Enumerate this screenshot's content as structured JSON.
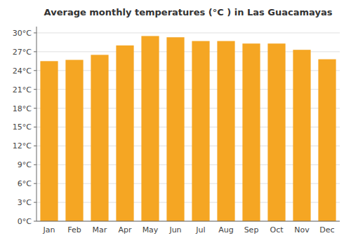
{
  "chart_data": {
    "type": "bar",
    "title": "Average monthly temperatures (°C ) in Las Guacamayas",
    "categories": [
      "Jan",
      "Feb",
      "Mar",
      "Apr",
      "May",
      "Jun",
      "Jul",
      "Aug",
      "Sep",
      "Oct",
      "Nov",
      "Dec"
    ],
    "values": [
      25.5,
      25.7,
      26.5,
      28.0,
      29.5,
      29.3,
      28.7,
      28.7,
      28.3,
      28.3,
      27.3,
      25.8
    ],
    "color": "#F5A623",
    "ylim": [
      0,
      31
    ],
    "yticks": [
      {
        "value": 0,
        "label": "0°C"
      },
      {
        "value": 3,
        "label": "3°C"
      },
      {
        "value": 6,
        "label": "6°C"
      },
      {
        "value": 9,
        "label": "9°C"
      },
      {
        "value": 12,
        "label": "12°C"
      },
      {
        "value": 15,
        "label": "15°C"
      },
      {
        "value": 18,
        "label": "18°C"
      },
      {
        "value": 21,
        "label": "21°C"
      },
      {
        "value": 24,
        "label": "24°C"
      },
      {
        "value": 27,
        "label": "27°C"
      },
      {
        "value": 30,
        "label": "30°C"
      }
    ],
    "grid": true
  }
}
